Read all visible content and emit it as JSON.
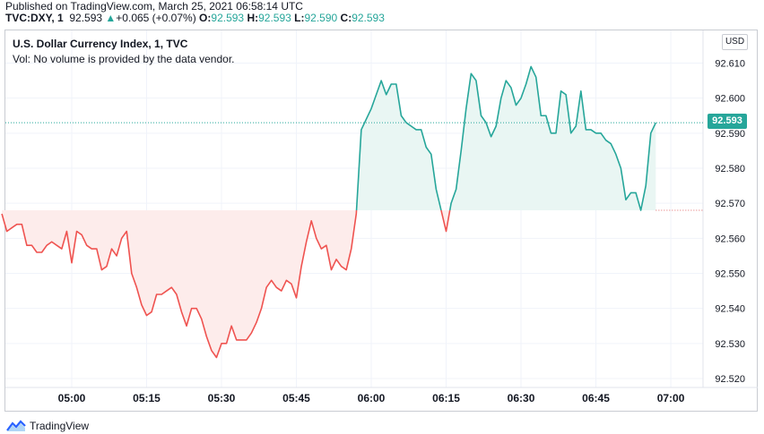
{
  "header": {
    "published": "Published on TradingView.com, March 25, 2021 06:58:14 UTC",
    "symbol": "TVC:DXY, 1",
    "last": "92.593",
    "change_arrow": "▲",
    "change": "+0.065 (+0.07%)",
    "o_label": "O:",
    "o_value": "92.593",
    "h_label": "H:",
    "h_value": "92.593",
    "l_label": "L:",
    "l_value": "92.590",
    "c_label": "C:",
    "c_value": "92.593"
  },
  "legend": {
    "title": "U.S. Dollar Currency Index, 1, TVC",
    "volume_note": "Vol: No volume is provided by the data vendor."
  },
  "currency_button": "USD",
  "last_price_badge": "92.593",
  "footer": {
    "logo_icon": "tradingview-logo-icon",
    "brand": "TradingView"
  },
  "colors": {
    "up": "#26a69a",
    "down": "#ef5350",
    "up_fill": "#e9f6f3",
    "down_fill": "#fdeceb"
  },
  "chart_data": {
    "type": "line",
    "xlabel": "",
    "ylabel": "",
    "baseline": 92.568,
    "last_price": 92.593,
    "ylim": [
      92.518,
      92.618
    ],
    "xlim_minutes": [
      -17.5,
      63.5
    ],
    "x_ticks": [
      {
        "m": 0,
        "label": "05:00"
      },
      {
        "m": 15,
        "label": "05:15"
      },
      {
        "m": 30,
        "label": "05:30"
      },
      {
        "m": 45,
        "label": "05:45"
      },
      {
        "m": 60,
        "label": "06:00"
      },
      {
        "m": 75,
        "label": "06:15"
      },
      {
        "m": 90,
        "label": "06:30"
      },
      {
        "m": 105,
        "label": "06:45"
      },
      {
        "m": 120,
        "label": "07:00"
      }
    ],
    "y_ticks": [
      {
        "v": 92.61,
        "label": "92.610"
      },
      {
        "v": 92.6,
        "label": "92.600"
      },
      {
        "v": 92.59,
        "label": "92.590"
      },
      {
        "v": 92.58,
        "label": "92.580"
      },
      {
        "v": 92.57,
        "label": "92.570"
      },
      {
        "v": 92.56,
        "label": "92.560"
      },
      {
        "v": 92.55,
        "label": "92.550"
      },
      {
        "v": 92.54,
        "label": "92.540"
      },
      {
        "v": 92.53,
        "label": "92.530"
      },
      {
        "v": 92.52,
        "label": "92.520"
      }
    ],
    "series": [
      {
        "x_start": "04:46",
        "step_minutes": 1,
        "values": [
          92.567,
          92.562,
          92.563,
          92.564,
          92.564,
          92.558,
          92.558,
          92.556,
          92.556,
          92.558,
          92.559,
          92.558,
          92.557,
          92.562,
          92.553,
          92.562,
          92.561,
          92.558,
          92.557,
          92.557,
          92.551,
          92.552,
          92.557,
          92.555,
          92.56,
          92.562,
          92.55,
          92.546,
          92.541,
          92.538,
          92.539,
          92.544,
          92.544,
          92.545,
          92.546,
          92.544,
          92.539,
          92.535,
          92.54,
          92.54,
          92.537,
          92.532,
          92.528,
          92.526,
          92.53,
          92.53,
          92.535,
          92.531,
          92.531,
          92.531,
          92.533,
          92.536,
          92.54,
          92.546,
          92.548,
          92.546,
          92.545,
          92.548,
          92.547,
          92.543,
          92.552,
          92.559,
          92.565,
          92.56,
          92.557,
          92.558,
          92.551,
          92.554,
          92.552,
          92.551,
          92.557,
          92.567,
          92.591,
          92.594,
          92.597,
          92.601,
          92.605,
          92.601,
          92.604,
          92.604,
          92.595,
          92.593,
          92.592,
          92.591,
          92.591,
          92.586,
          92.584,
          92.574,
          92.568,
          92.562,
          92.57,
          92.574,
          92.585,
          92.597,
          92.607,
          92.605,
          92.595,
          92.593,
          92.589,
          92.592,
          92.6,
          92.605,
          92.603,
          92.598,
          92.6,
          92.604,
          92.609,
          92.606,
          92.595,
          92.595,
          92.59,
          92.59,
          92.602,
          92.601,
          92.59,
          92.592,
          92.602,
          92.591,
          92.591,
          92.59,
          92.59,
          92.588,
          92.587,
          92.584,
          92.58,
          92.571,
          92.573,
          92.573,
          92.568,
          92.575,
          92.59,
          92.593
        ]
      }
    ]
  }
}
